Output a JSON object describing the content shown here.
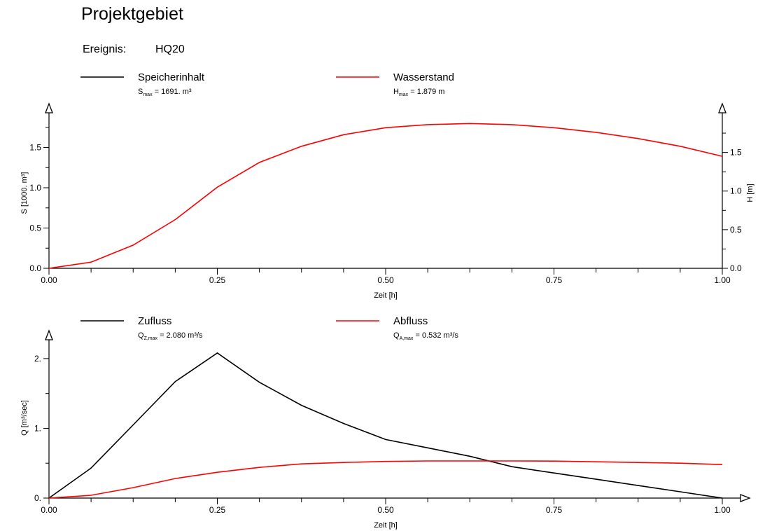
{
  "title": "Projektgebiet",
  "event": {
    "label": "Ereignis:",
    "value": "HQ20"
  },
  "colors": {
    "black_series": "#000000",
    "red_series": "#ff0000",
    "axis": "#000000"
  },
  "chart_data": [
    {
      "type": "line",
      "xlabel": "Zeit [h]",
      "ylabel": "S [1000. m³]",
      "ylabel_right": "H [m]",
      "xlim": [
        0,
        1.0
      ],
      "ylim": [
        0,
        1.87
      ],
      "ylim_right": [
        0,
        1.95
      ],
      "x_ticks": [
        "0.00",
        "0.25",
        "0.50",
        "0.75",
        "1.00"
      ],
      "y_ticks": [
        "0.0",
        "0.5",
        "1.0",
        "1.5"
      ],
      "y_ticks_right": [
        "0.0",
        "0.5",
        "1.0",
        "1.5"
      ],
      "legend": [
        {
          "name": "Speicherinhalt",
          "stat_symbol": "S",
          "stat_sub": "max",
          "stat_value": "1691.",
          "stat_unit": "m³",
          "color": "#000000"
        },
        {
          "name": "Wasserstand",
          "stat_symbol": "H",
          "stat_sub": "max",
          "stat_value": "1.879 m",
          "stat_unit": "",
          "color": "#ff0000"
        }
      ],
      "series": [
        {
          "name": "Wasserstand",
          "color": "#ff0000",
          "axis": "right",
          "x": [
            0,
            0.0625,
            0.125,
            0.1875,
            0.25,
            0.3125,
            0.375,
            0.4375,
            0.5,
            0.5625,
            0.625,
            0.6875,
            0.75,
            0.8125,
            0.875,
            0.9375,
            1.0
          ],
          "y": [
            0,
            0.08,
            0.3,
            0.63,
            1.05,
            1.37,
            1.58,
            1.73,
            1.82,
            1.86,
            1.875,
            1.86,
            1.82,
            1.76,
            1.68,
            1.58,
            1.45
          ]
        }
      ]
    },
    {
      "type": "line",
      "xlabel": "Zeit [h]",
      "ylabel": "Q [m³/sec]",
      "xlim": [
        0,
        1.0
      ],
      "ylim": [
        0,
        2.3
      ],
      "x_ticks": [
        "0.00",
        "0.25",
        "0.50",
        "0.75",
        "1.00"
      ],
      "y_ticks": [
        "0.",
        "1.",
        "2."
      ],
      "legend": [
        {
          "name": "Zufluss",
          "stat_symbol": "Q",
          "stat_sub": "Z,max",
          "stat_value": "2.080",
          "stat_unit": "m³/s",
          "color": "#000000"
        },
        {
          "name": "Abfluss",
          "stat_symbol": "Q",
          "stat_sub": "A,max",
          "stat_value": "0.532",
          "stat_unit": "m³/s",
          "color": "#ff0000"
        }
      ],
      "series": [
        {
          "name": "Zufluss",
          "color": "#000000",
          "x": [
            0,
            0.0625,
            0.125,
            0.1875,
            0.25,
            0.3125,
            0.375,
            0.4375,
            0.5,
            0.5625,
            0.625,
            0.6875,
            0.75,
            0.8125,
            0.875,
            0.9375,
            1.0
          ],
          "y": [
            0,
            0.43,
            1.05,
            1.67,
            2.08,
            1.66,
            1.33,
            1.07,
            0.84,
            0.72,
            0.6,
            0.45,
            0.36,
            0.27,
            0.18,
            0.09,
            0
          ]
        },
        {
          "name": "Abfluss",
          "color": "#ff0000",
          "x": [
            0,
            0.0625,
            0.125,
            0.1875,
            0.25,
            0.3125,
            0.375,
            0.4375,
            0.5,
            0.5625,
            0.625,
            0.6875,
            0.75,
            0.8125,
            0.875,
            0.9375,
            1.0
          ],
          "y": [
            0,
            0.04,
            0.15,
            0.28,
            0.37,
            0.44,
            0.49,
            0.51,
            0.525,
            0.532,
            0.532,
            0.532,
            0.53,
            0.52,
            0.51,
            0.5,
            0.48
          ]
        }
      ]
    }
  ]
}
